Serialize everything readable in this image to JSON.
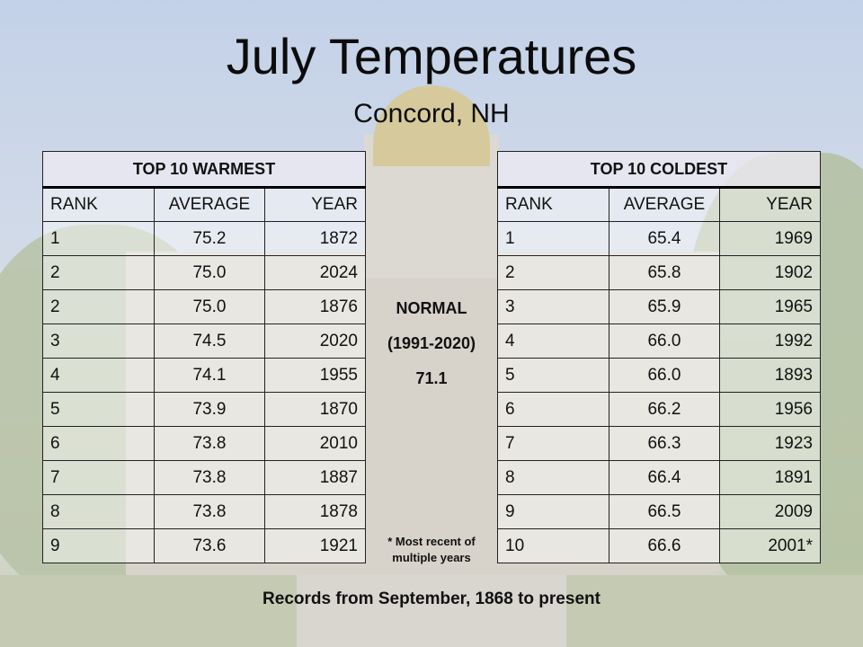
{
  "title": "July Temperatures",
  "subtitle": "Concord, NH",
  "warmest": {
    "heading": "TOP 10 WARMEST",
    "columns": [
      "RANK",
      "AVERAGE",
      "YEAR"
    ],
    "rows": [
      [
        "1",
        "75.2",
        "1872"
      ],
      [
        "2",
        "75.0",
        "2024"
      ],
      [
        "2",
        "75.0",
        "1876"
      ],
      [
        "3",
        "74.5",
        "2020"
      ],
      [
        "4",
        "74.1",
        "1955"
      ],
      [
        "5",
        "73.9",
        "1870"
      ],
      [
        "6",
        "73.8",
        "2010"
      ],
      [
        "7",
        "73.8",
        "1887"
      ],
      [
        "8",
        "73.8",
        "1878"
      ],
      [
        "9",
        "73.6",
        "1921"
      ]
    ]
  },
  "coldest": {
    "heading": "TOP 10 COLDEST",
    "columns": [
      "RANK",
      "AVERAGE",
      "YEAR"
    ],
    "rows": [
      [
        "1",
        "65.4",
        "1969"
      ],
      [
        "2",
        "65.8",
        "1902"
      ],
      [
        "3",
        "65.9",
        "1965"
      ],
      [
        "4",
        "66.0",
        "1992"
      ],
      [
        "5",
        "66.0",
        "1893"
      ],
      [
        "6",
        "66.2",
        "1956"
      ],
      [
        "7",
        "66.3",
        "1923"
      ],
      [
        "8",
        "66.4",
        "1891"
      ],
      [
        "9",
        "66.5",
        "2009"
      ],
      [
        "10",
        "66.6",
        "2001*"
      ]
    ]
  },
  "normal": {
    "label": "NORMAL",
    "period": "(1991-2020)",
    "value": "71.1"
  },
  "footnote": {
    "line1": "* Most recent of",
    "line2": "multiple years"
  },
  "footer": "Records from September, 1868 to present"
}
